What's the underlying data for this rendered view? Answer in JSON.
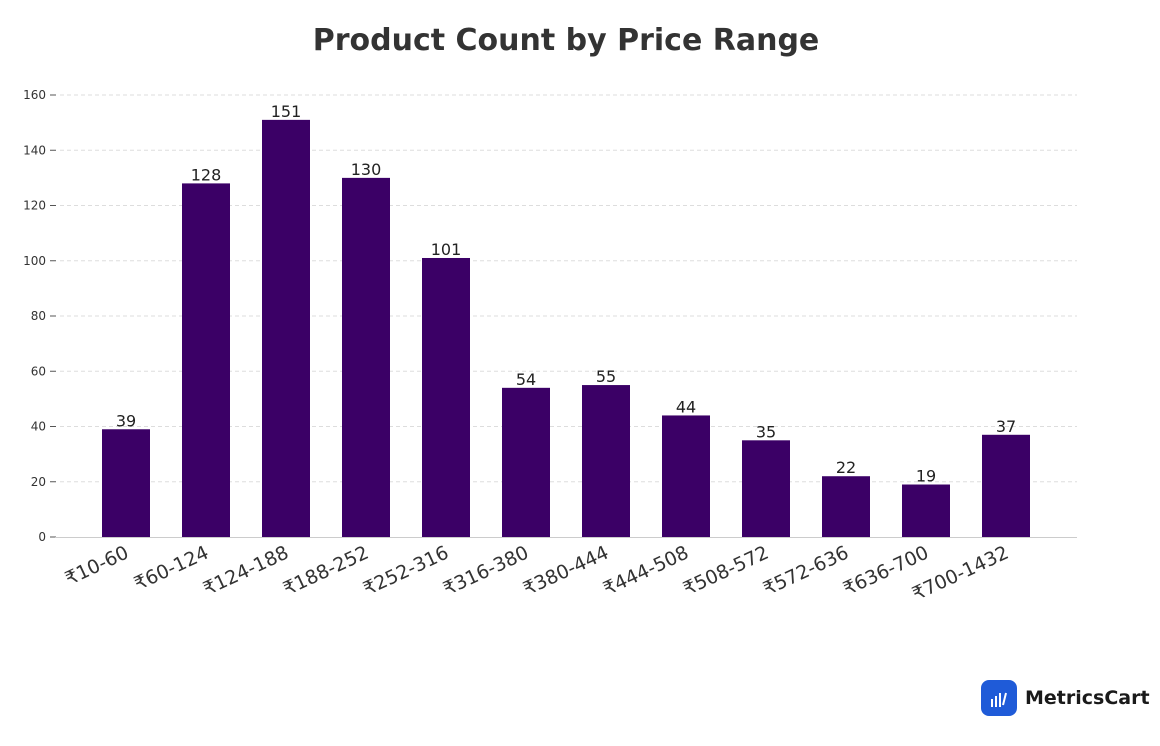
{
  "chart_data": {
    "type": "bar",
    "title": "Product Count by Price Range",
    "xlabel": "",
    "ylabel": "",
    "categories": [
      "₹10-60",
      "₹60-124",
      "₹124-188",
      "₹188-252",
      "₹252-316",
      "₹316-380",
      "₹380-444",
      "₹444-508",
      "₹508-572",
      "₹572-636",
      "₹636-700",
      "₹700-1432"
    ],
    "values": [
      39,
      128,
      151,
      130,
      101,
      54,
      55,
      44,
      35,
      22,
      19,
      37
    ],
    "ylim": [
      0,
      160
    ],
    "yticks": [
      0,
      20,
      40,
      60,
      80,
      100,
      120,
      140,
      160
    ],
    "grid": true,
    "bar_color": "#3b0066",
    "data_labels": true
  },
  "branding": {
    "logo_text": "MetricsCart",
    "logo_color": "#1f5bd8",
    "logo_icon": "bar-chart-icon"
  }
}
